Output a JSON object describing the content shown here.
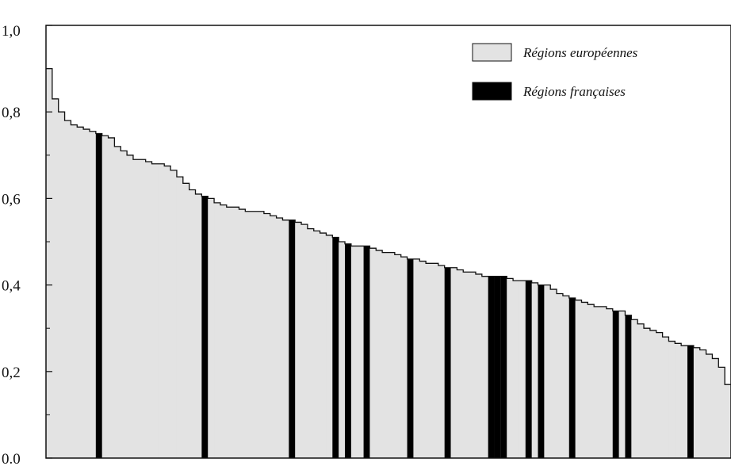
{
  "chart_data": {
    "type": "bar",
    "title": "",
    "xlabel": "",
    "ylabel": "",
    "ylim": [
      0,
      1
    ],
    "yticks": [
      "0.0",
      "0,2",
      "0,4",
      "0,6",
      "0,8",
      "1,0"
    ],
    "grid": false,
    "legend_position": "top-right",
    "colors": {
      "european": "#e3e3e3",
      "french": "#000000",
      "outline": "#111111"
    },
    "series": [
      {
        "name": "Régions européennes",
        "values": [
          0.9,
          0.83,
          0.8,
          0.78,
          0.77,
          0.765,
          0.76,
          0.755,
          0.75,
          0.745,
          0.74,
          0.72,
          0.71,
          0.7,
          0.69,
          0.69,
          0.685,
          0.68,
          0.68,
          0.675,
          0.665,
          0.65,
          0.635,
          0.62,
          0.61,
          0.605,
          0.6,
          0.59,
          0.585,
          0.58,
          0.58,
          0.575,
          0.57,
          0.57,
          0.57,
          0.565,
          0.56,
          0.555,
          0.55,
          0.55,
          0.545,
          0.54,
          0.53,
          0.525,
          0.52,
          0.515,
          0.51,
          0.5,
          0.495,
          0.49,
          0.49,
          0.49,
          0.485,
          0.48,
          0.475,
          0.475,
          0.47,
          0.465,
          0.46,
          0.46,
          0.455,
          0.45,
          0.45,
          0.445,
          0.44,
          0.44,
          0.435,
          0.43,
          0.43,
          0.425,
          0.42,
          0.42,
          0.42,
          0.42,
          0.415,
          0.41,
          0.41,
          0.41,
          0.405,
          0.4,
          0.4,
          0.39,
          0.38,
          0.375,
          0.37,
          0.365,
          0.36,
          0.355,
          0.35,
          0.35,
          0.345,
          0.34,
          0.34,
          0.33,
          0.32,
          0.31,
          0.3,
          0.295,
          0.29,
          0.28,
          0.27,
          0.265,
          0.26,
          0.26,
          0.255,
          0.25,
          0.24,
          0.23,
          0.21,
          0.17
        ]
      },
      {
        "name": "Régions françaises",
        "indices": [
          8,
          25,
          39,
          46,
          48,
          51,
          58,
          64,
          71,
          72,
          73,
          77,
          79,
          84,
          91,
          93,
          103
        ]
      }
    ]
  }
}
